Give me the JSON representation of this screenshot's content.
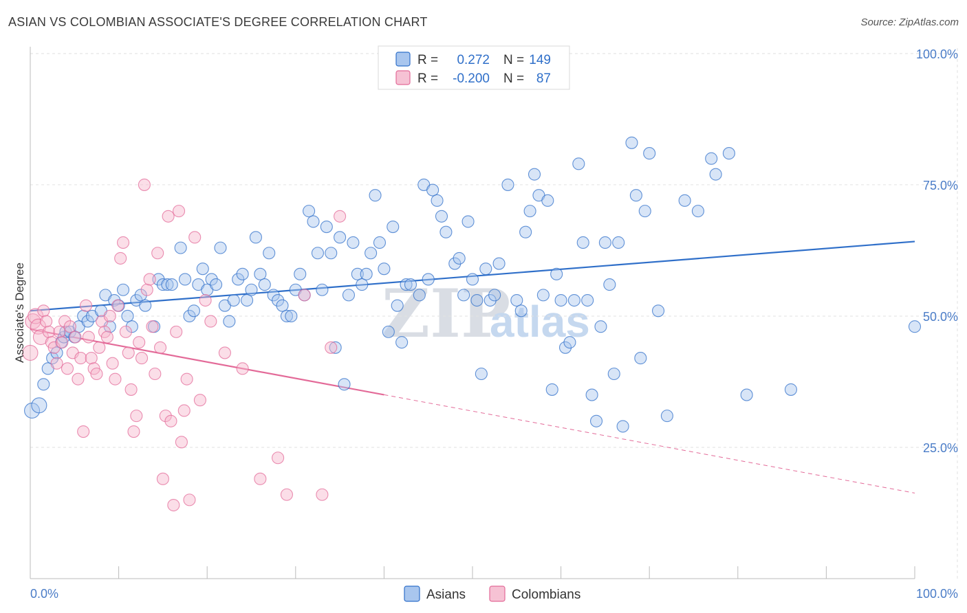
{
  "title": "ASIAN VS COLOMBIAN ASSOCIATE'S DEGREE CORRELATION CHART",
  "source": "Source: ZipAtlas.com",
  "watermark": {
    "zip": "ZIP",
    "atlas": "atlas"
  },
  "legend": {
    "r_label": "R =",
    "n_label": "N =",
    "entries": [
      {
        "r": "0.272",
        "n": "149"
      },
      {
        "r": "-0.200",
        "n": "87"
      }
    ]
  },
  "bottom_legend": [
    "Asians",
    "Colombians"
  ],
  "colors": {
    "asians": "#2f6fc9",
    "asians_fill": "#a9c6ee",
    "colombians": "#e36a98",
    "colombians_fill": "#f6b6cc"
  },
  "chart_data": {
    "type": "scatter",
    "title": "ASIAN VS COLOMBIAN ASSOCIATE'S DEGREE CORRELATION CHART",
    "xlabel": "",
    "ylabel": "Associate's Degree",
    "xlim": [
      0,
      100
    ],
    "ylim": [
      0,
      105
    ],
    "x_tick_labels": [
      "0.0%",
      "100.0%"
    ],
    "y_ticks": [
      25,
      50,
      75,
      100
    ],
    "y_tick_labels": [
      "25.0%",
      "50.0%",
      "75.0%",
      "100.0%"
    ],
    "grid": true,
    "legend_position": "top-center",
    "series": [
      {
        "name": "Asians",
        "r": 0.272,
        "n": 149,
        "trend": {
          "x": [
            0,
            100
          ],
          "y": [
            51.0,
            64.2
          ],
          "dashed_from": null
        },
        "points": [
          [
            0.2,
            32
          ],
          [
            1,
            33
          ],
          [
            1.5,
            37
          ],
          [
            2,
            40
          ],
          [
            2.5,
            42
          ],
          [
            3,
            43
          ],
          [
            3.5,
            45
          ],
          [
            3.8,
            46
          ],
          [
            4,
            47
          ],
          [
            4.5,
            47
          ],
          [
            5,
            46
          ],
          [
            5.5,
            48
          ],
          [
            6,
            50
          ],
          [
            6.5,
            49
          ],
          [
            7,
            50
          ],
          [
            8,
            51
          ],
          [
            8.5,
            54
          ],
          [
            9,
            48
          ],
          [
            9.5,
            53
          ],
          [
            10,
            52
          ],
          [
            10.5,
            55
          ],
          [
            11,
            50
          ],
          [
            11.5,
            48
          ],
          [
            12,
            53
          ],
          [
            12.5,
            54
          ],
          [
            13,
            52
          ],
          [
            14,
            48
          ],
          [
            14.5,
            57
          ],
          [
            15,
            56
          ],
          [
            15.5,
            56
          ],
          [
            16,
            56
          ],
          [
            17,
            63
          ],
          [
            17.5,
            57
          ],
          [
            18,
            50
          ],
          [
            18.5,
            51
          ],
          [
            19,
            56
          ],
          [
            19.5,
            59
          ],
          [
            20,
            55
          ],
          [
            20.5,
            57
          ],
          [
            21,
            56
          ],
          [
            21.5,
            63
          ],
          [
            22,
            52
          ],
          [
            22.5,
            49
          ],
          [
            23,
            53
          ],
          [
            23.5,
            57
          ],
          [
            24,
            58
          ],
          [
            24.5,
            53
          ],
          [
            25,
            55
          ],
          [
            25.5,
            65
          ],
          [
            26,
            58
          ],
          [
            26.5,
            56
          ],
          [
            27,
            62
          ],
          [
            27.5,
            54
          ],
          [
            28,
            53
          ],
          [
            28.5,
            52
          ],
          [
            29,
            50
          ],
          [
            29.5,
            50
          ],
          [
            30,
            55
          ],
          [
            30.5,
            58
          ],
          [
            31,
            54
          ],
          [
            31.5,
            70
          ],
          [
            32,
            68
          ],
          [
            32.5,
            62
          ],
          [
            33,
            55
          ],
          [
            33.5,
            67
          ],
          [
            34,
            62
          ],
          [
            34.5,
            44
          ],
          [
            35,
            65
          ],
          [
            35.5,
            37
          ],
          [
            36,
            54
          ],
          [
            36.5,
            64
          ],
          [
            37,
            58
          ],
          [
            37.5,
            56
          ],
          [
            38,
            58
          ],
          [
            38.5,
            62
          ],
          [
            39,
            73
          ],
          [
            39.5,
            64
          ],
          [
            40,
            59
          ],
          [
            40.5,
            47
          ],
          [
            41,
            67
          ],
          [
            41.5,
            52
          ],
          [
            42,
            45
          ],
          [
            42.5,
            56
          ],
          [
            43,
            56
          ],
          [
            44,
            54
          ],
          [
            44.5,
            75
          ],
          [
            45,
            57
          ],
          [
            45.5,
            74
          ],
          [
            46,
            72
          ],
          [
            46.5,
            69
          ],
          [
            47,
            66
          ],
          [
            48,
            60
          ],
          [
            48.5,
            61
          ],
          [
            49,
            54
          ],
          [
            49.5,
            68
          ],
          [
            50,
            57
          ],
          [
            50.5,
            53
          ],
          [
            51,
            39
          ],
          [
            51.5,
            59
          ],
          [
            52,
            53
          ],
          [
            52.5,
            54
          ],
          [
            53,
            60
          ],
          [
            54,
            75
          ],
          [
            55,
            53
          ],
          [
            55.5,
            51
          ],
          [
            56,
            66
          ],
          [
            56.5,
            70
          ],
          [
            57,
            77
          ],
          [
            57.5,
            73
          ],
          [
            58,
            54
          ],
          [
            58.5,
            72
          ],
          [
            59,
            36
          ],
          [
            59.5,
            58
          ],
          [
            60,
            53
          ],
          [
            60.5,
            44
          ],
          [
            61,
            45
          ],
          [
            61.5,
            53
          ],
          [
            62,
            79
          ],
          [
            62.5,
            64
          ],
          [
            63,
            53
          ],
          [
            63.5,
            35
          ],
          [
            64,
            30
          ],
          [
            64.5,
            48
          ],
          [
            65,
            64
          ],
          [
            65.5,
            56
          ],
          [
            66,
            39
          ],
          [
            66.5,
            64
          ],
          [
            67,
            29
          ],
          [
            68,
            83
          ],
          [
            68.5,
            73
          ],
          [
            69,
            42
          ],
          [
            69.5,
            70
          ],
          [
            70,
            81
          ],
          [
            71,
            51
          ],
          [
            72,
            31
          ],
          [
            74,
            72
          ],
          [
            75.5,
            70
          ],
          [
            77,
            80
          ],
          [
            77.5,
            77
          ],
          [
            79,
            81
          ],
          [
            81,
            35
          ],
          [
            86,
            36
          ],
          [
            100,
            48
          ]
        ]
      },
      {
        "name": "Colombians",
        "r": -0.2,
        "n": 87,
        "trend": {
          "x": [
            0,
            100
          ],
          "y": [
            47.5,
            16.3
          ],
          "dashed_from": 40
        },
        "points": [
          [
            0,
            43
          ],
          [
            0.3,
            49
          ],
          [
            0.6,
            50
          ],
          [
            0.9,
            48
          ],
          [
            1.2,
            46
          ],
          [
            1.5,
            51
          ],
          [
            1.8,
            49
          ],
          [
            2.1,
            47
          ],
          [
            2.4,
            45
          ],
          [
            2.7,
            44
          ],
          [
            3,
            41
          ],
          [
            3.3,
            47
          ],
          [
            3.6,
            45
          ],
          [
            3.9,
            49
          ],
          [
            4.2,
            40
          ],
          [
            4.5,
            48
          ],
          [
            4.8,
            43
          ],
          [
            5.1,
            46
          ],
          [
            5.4,
            38
          ],
          [
            5.7,
            42
          ],
          [
            6,
            28
          ],
          [
            6.3,
            52
          ],
          [
            6.6,
            46
          ],
          [
            6.9,
            42
          ],
          [
            7.2,
            40
          ],
          [
            7.5,
            39
          ],
          [
            7.8,
            44
          ],
          [
            8.1,
            49
          ],
          [
            8.4,
            47
          ],
          [
            8.7,
            46
          ],
          [
            9,
            50
          ],
          [
            9.3,
            41
          ],
          [
            9.6,
            38
          ],
          [
            9.9,
            52
          ],
          [
            10.2,
            61
          ],
          [
            10.5,
            64
          ],
          [
            10.8,
            47
          ],
          [
            11.1,
            43
          ],
          [
            11.4,
            36
          ],
          [
            11.7,
            28
          ],
          [
            12,
            31
          ],
          [
            12.3,
            45
          ],
          [
            12.6,
            42
          ],
          [
            12.9,
            75
          ],
          [
            13.2,
            55
          ],
          [
            13.5,
            57
          ],
          [
            13.8,
            48
          ],
          [
            14.1,
            39
          ],
          [
            14.4,
            62
          ],
          [
            14.7,
            44
          ],
          [
            15,
            19
          ],
          [
            15.3,
            31
          ],
          [
            15.6,
            69
          ],
          [
            15.9,
            30
          ],
          [
            16.2,
            14
          ],
          [
            16.5,
            47
          ],
          [
            16.8,
            70
          ],
          [
            17.1,
            26
          ],
          [
            17.4,
            32
          ],
          [
            17.7,
            38
          ],
          [
            18,
            15
          ],
          [
            18.6,
            65
          ],
          [
            19.2,
            34
          ],
          [
            19.8,
            53
          ],
          [
            20.4,
            49
          ],
          [
            22,
            43
          ],
          [
            24,
            40
          ],
          [
            26,
            19
          ],
          [
            28,
            23
          ],
          [
            29,
            16
          ],
          [
            31,
            54
          ],
          [
            33,
            16
          ],
          [
            34,
            44
          ],
          [
            35,
            69
          ]
        ]
      }
    ]
  }
}
